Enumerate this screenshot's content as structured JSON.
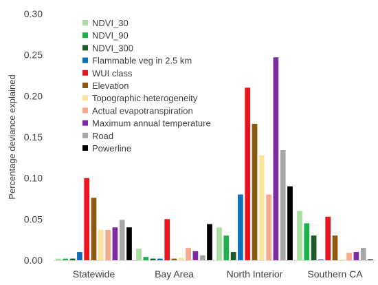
{
  "chart_data": {
    "type": "bar",
    "xlabel": "",
    "ylabel": "Percentage deviance explained",
    "ylim": [
      0,
      0.3
    ],
    "y_ticks": [
      "0.00",
      "0.05",
      "0.10",
      "0.15",
      "0.20",
      "0.25",
      "0.30"
    ],
    "grid": false,
    "legend_position": "top-left",
    "categories": [
      "Statewide",
      "Bay Area",
      "North Interior",
      "Southern CA"
    ],
    "series": [
      {
        "name": "NDVI_30",
        "color": "#a9dfa0",
        "values": [
          0.002,
          0.014,
          0.04,
          0.06
        ]
      },
      {
        "name": "NDVI_90",
        "color": "#1db04b",
        "values": [
          0.002,
          0.004,
          0.03,
          0.045
        ]
      },
      {
        "name": "NDVI_300",
        "color": "#1e5a27",
        "values": [
          0.002,
          0.002,
          0.01,
          0.03
        ]
      },
      {
        "name": "Flammable veg in 2.5 km",
        "color": "#0e6fb5",
        "values": [
          0.01,
          0.002,
          0.08,
          0.001
        ]
      },
      {
        "name": "WUI class",
        "color": "#e8141e",
        "values": [
          0.1,
          0.05,
          0.21,
          0.053
        ]
      },
      {
        "name": "Elevation",
        "color": "#8b5a10",
        "values": [
          0.076,
          0.002,
          0.166,
          0.03
        ]
      },
      {
        "name": "Topographic heterogeneity",
        "color": "#fde39b",
        "values": [
          0.037,
          0.003,
          0.128,
          0.001
        ]
      },
      {
        "name": "Actual evapotranspiration",
        "color": "#f7a98c",
        "values": [
          0.037,
          0.015,
          0.08,
          0.009
        ]
      },
      {
        "name": "Maximum annual temperature",
        "color": "#7f2aa3",
        "values": [
          0.04,
          0.011,
          0.247,
          0.01
        ]
      },
      {
        "name": "Road",
        "color": "#a6a6a6",
        "values": [
          0.049,
          0.006,
          0.134,
          0.015
        ]
      },
      {
        "name": "Powerline",
        "color": "#000000",
        "values": [
          0.04,
          0.044,
          0.09,
          0.001
        ]
      }
    ]
  }
}
